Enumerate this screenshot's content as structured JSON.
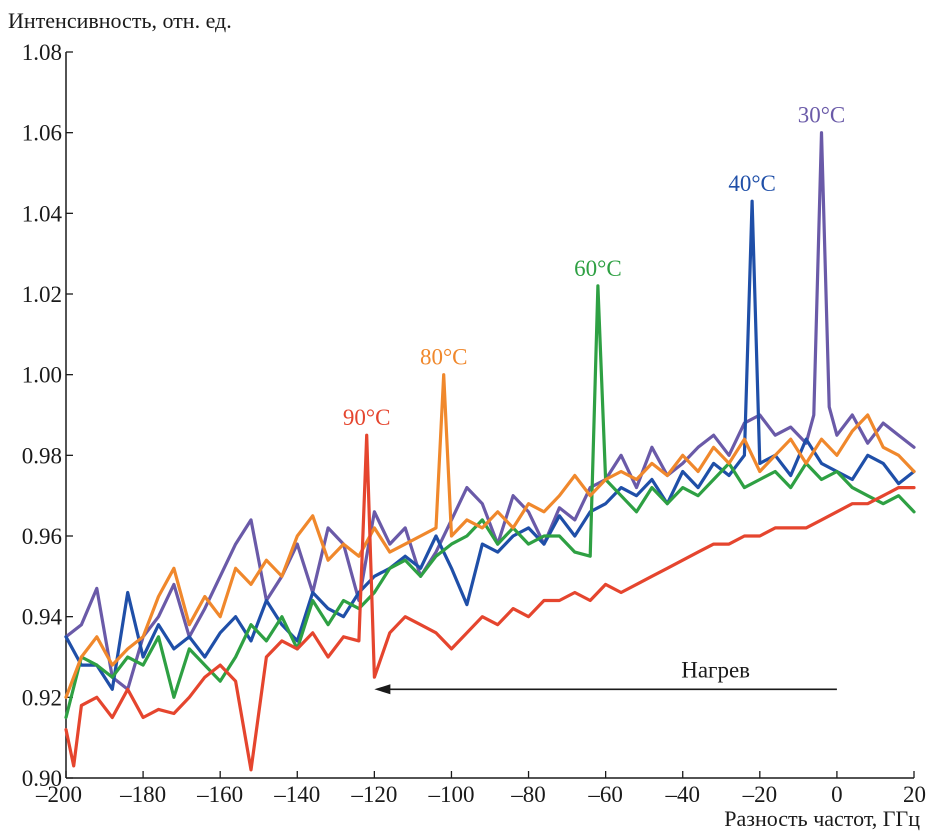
{
  "chart_data": {
    "type": "line",
    "title": "",
    "xlabel": "Разность частот, ГГц",
    "ylabel": "Интенсивность, отн. ед.",
    "xlim": [
      -200,
      20
    ],
    "ylim": [
      0.9,
      1.08
    ],
    "xticks": [
      -200,
      -180,
      -160,
      -140,
      -120,
      -100,
      -80,
      -60,
      -40,
      -20,
      0,
      20
    ],
    "xtick_labels": [
      "–200",
      "–180",
      "–160",
      "–140",
      "–120",
      "–100",
      "–80",
      "–60",
      "–40",
      "–20",
      "0",
      "20"
    ],
    "yticks": [
      0.9,
      0.92,
      0.94,
      0.96,
      0.98,
      1.0,
      1.02,
      1.04,
      1.06,
      1.08
    ],
    "ytick_labels": [
      "0.90",
      "0.92",
      "0.94",
      "0.96",
      "0.98",
      "1.00",
      "1.02",
      "1.04",
      "1.06",
      "1.08"
    ],
    "grid": false,
    "annotation": {
      "text": "Нагрев",
      "arrow_from_x": 0,
      "arrow_to_x": -120,
      "y": 0.922
    },
    "series": [
      {
        "name": "30°C",
        "color": "#6a5aa8",
        "peak": [
          -4,
          1.06
        ],
        "x": [
          -200,
          -196,
          -192,
          -188,
          -184,
          -180,
          -176,
          -172,
          -168,
          -164,
          -160,
          -156,
          -152,
          -148,
          -144,
          -140,
          -136,
          -132,
          -128,
          -124,
          -120,
          -116,
          -112,
          -108,
          -104,
          -100,
          -96,
          -92,
          -88,
          -84,
          -80,
          -76,
          -72,
          -68,
          -64,
          -60,
          -56,
          -52,
          -48,
          -44,
          -40,
          -36,
          -32,
          -28,
          -24,
          -20,
          -16,
          -12,
          -8,
          -6,
          -4,
          -2,
          0,
          4,
          8,
          12,
          16,
          20
        ],
        "y": [
          0.935,
          0.938,
          0.947,
          0.925,
          0.922,
          0.935,
          0.94,
          0.948,
          0.935,
          0.942,
          0.95,
          0.958,
          0.964,
          0.944,
          0.95,
          0.958,
          0.946,
          0.962,
          0.958,
          0.944,
          0.966,
          0.958,
          0.962,
          0.95,
          0.956,
          0.964,
          0.972,
          0.968,
          0.958,
          0.97,
          0.966,
          0.958,
          0.967,
          0.964,
          0.972,
          0.974,
          0.98,
          0.972,
          0.982,
          0.975,
          0.978,
          0.982,
          0.985,
          0.98,
          0.988,
          0.99,
          0.985,
          0.987,
          0.983,
          0.99,
          1.06,
          0.992,
          0.985,
          0.99,
          0.983,
          0.988,
          0.985,
          0.982
        ]
      },
      {
        "name": "40°C",
        "color": "#1f4fa8",
        "peak": [
          -22,
          1.043
        ],
        "x": [
          -200,
          -196,
          -192,
          -188,
          -184,
          -180,
          -176,
          -172,
          -168,
          -164,
          -160,
          -156,
          -152,
          -148,
          -144,
          -140,
          -136,
          -132,
          -128,
          -124,
          -120,
          -116,
          -112,
          -108,
          -104,
          -100,
          -96,
          -92,
          -88,
          -84,
          -80,
          -76,
          -72,
          -68,
          -64,
          -60,
          -56,
          -52,
          -48,
          -44,
          -40,
          -36,
          -32,
          -28,
          -24,
          -22,
          -20,
          -16,
          -12,
          -8,
          -4,
          0,
          4,
          8,
          12,
          16,
          20
        ],
        "y": [
          0.935,
          0.928,
          0.928,
          0.922,
          0.946,
          0.93,
          0.938,
          0.932,
          0.935,
          0.93,
          0.936,
          0.94,
          0.934,
          0.944,
          0.938,
          0.934,
          0.946,
          0.942,
          0.94,
          0.946,
          0.95,
          0.952,
          0.955,
          0.952,
          0.96,
          0.952,
          0.943,
          0.958,
          0.956,
          0.96,
          0.962,
          0.958,
          0.965,
          0.96,
          0.966,
          0.968,
          0.972,
          0.97,
          0.974,
          0.968,
          0.976,
          0.972,
          0.978,
          0.975,
          0.98,
          1.043,
          0.978,
          0.98,
          0.975,
          0.984,
          0.978,
          0.976,
          0.974,
          0.98,
          0.978,
          0.973,
          0.976
        ]
      },
      {
        "name": "60°C",
        "color": "#2ea043",
        "peak": [
          -62,
          1.022
        ],
        "x": [
          -200,
          -196,
          -192,
          -188,
          -184,
          -180,
          -176,
          -172,
          -168,
          -164,
          -160,
          -156,
          -152,
          -148,
          -144,
          -140,
          -136,
          -132,
          -128,
          -124,
          -120,
          -116,
          -112,
          -108,
          -104,
          -100,
          -96,
          -92,
          -88,
          -84,
          -80,
          -76,
          -72,
          -68,
          -64,
          -62,
          -60,
          -56,
          -52,
          -48,
          -44,
          -40,
          -36,
          -32,
          -28,
          -24,
          -20,
          -16,
          -12,
          -8,
          -4,
          0,
          4,
          8,
          12,
          16,
          20
        ],
        "y": [
          0.915,
          0.93,
          0.928,
          0.925,
          0.93,
          0.928,
          0.935,
          0.92,
          0.932,
          0.928,
          0.924,
          0.93,
          0.938,
          0.934,
          0.94,
          0.932,
          0.944,
          0.938,
          0.944,
          0.942,
          0.946,
          0.952,
          0.954,
          0.95,
          0.955,
          0.958,
          0.96,
          0.964,
          0.958,
          0.962,
          0.958,
          0.96,
          0.96,
          0.956,
          0.955,
          1.022,
          0.974,
          0.97,
          0.966,
          0.972,
          0.968,
          0.972,
          0.97,
          0.974,
          0.978,
          0.972,
          0.974,
          0.976,
          0.972,
          0.978,
          0.974,
          0.976,
          0.972,
          0.97,
          0.968,
          0.97,
          0.966
        ]
      },
      {
        "name": "80°C",
        "color": "#f0882c",
        "peak": [
          -102,
          1.0
        ],
        "x": [
          -200,
          -196,
          -192,
          -188,
          -184,
          -180,
          -176,
          -172,
          -168,
          -164,
          -160,
          -156,
          -152,
          -148,
          -144,
          -140,
          -136,
          -132,
          -128,
          -124,
          -120,
          -116,
          -112,
          -108,
          -104,
          -102,
          -100,
          -96,
          -92,
          -88,
          -84,
          -80,
          -76,
          -72,
          -68,
          -64,
          -60,
          -56,
          -52,
          -48,
          -44,
          -40,
          -36,
          -32,
          -28,
          -24,
          -20,
          -16,
          -12,
          -8,
          -4,
          0,
          4,
          8,
          12,
          16,
          20
        ],
        "y": [
          0.92,
          0.93,
          0.935,
          0.928,
          0.932,
          0.935,
          0.945,
          0.952,
          0.938,
          0.945,
          0.94,
          0.952,
          0.948,
          0.954,
          0.95,
          0.96,
          0.965,
          0.954,
          0.958,
          0.955,
          0.962,
          0.956,
          0.958,
          0.96,
          0.962,
          1.0,
          0.96,
          0.964,
          0.962,
          0.966,
          0.962,
          0.968,
          0.966,
          0.97,
          0.975,
          0.97,
          0.974,
          0.976,
          0.974,
          0.978,
          0.975,
          0.98,
          0.976,
          0.982,
          0.978,
          0.984,
          0.976,
          0.98,
          0.984,
          0.978,
          0.984,
          0.98,
          0.986,
          0.99,
          0.982,
          0.98,
          0.976
        ]
      },
      {
        "name": "90°C",
        "color": "#e5452e",
        "peak": [
          -122,
          0.985
        ],
        "x": [
          -200,
          -198,
          -196,
          -192,
          -188,
          -184,
          -180,
          -176,
          -172,
          -168,
          -164,
          -160,
          -156,
          -152,
          -148,
          -144,
          -140,
          -136,
          -132,
          -128,
          -124,
          -122,
          -120,
          -116,
          -112,
          -108,
          -104,
          -100,
          -96,
          -92,
          -88,
          -84,
          -80,
          -76,
          -72,
          -68,
          -64,
          -60,
          -56,
          -52,
          -48,
          -44,
          -40,
          -36,
          -32,
          -28,
          -24,
          -20,
          -16,
          -12,
          -8,
          -4,
          0,
          4,
          8,
          12,
          16,
          20
        ],
        "y": [
          0.912,
          0.903,
          0.918,
          0.92,
          0.915,
          0.922,
          0.915,
          0.917,
          0.916,
          0.92,
          0.925,
          0.928,
          0.924,
          0.902,
          0.93,
          0.934,
          0.932,
          0.936,
          0.93,
          0.935,
          0.934,
          0.985,
          0.925,
          0.936,
          0.94,
          0.938,
          0.936,
          0.932,
          0.936,
          0.94,
          0.938,
          0.942,
          0.94,
          0.944,
          0.944,
          0.946,
          0.944,
          0.948,
          0.946,
          0.948,
          0.95,
          0.952,
          0.954,
          0.956,
          0.958,
          0.958,
          0.96,
          0.96,
          0.962,
          0.962,
          0.962,
          0.964,
          0.966,
          0.968,
          0.968,
          0.97,
          0.972,
          0.972
        ]
      }
    ]
  }
}
